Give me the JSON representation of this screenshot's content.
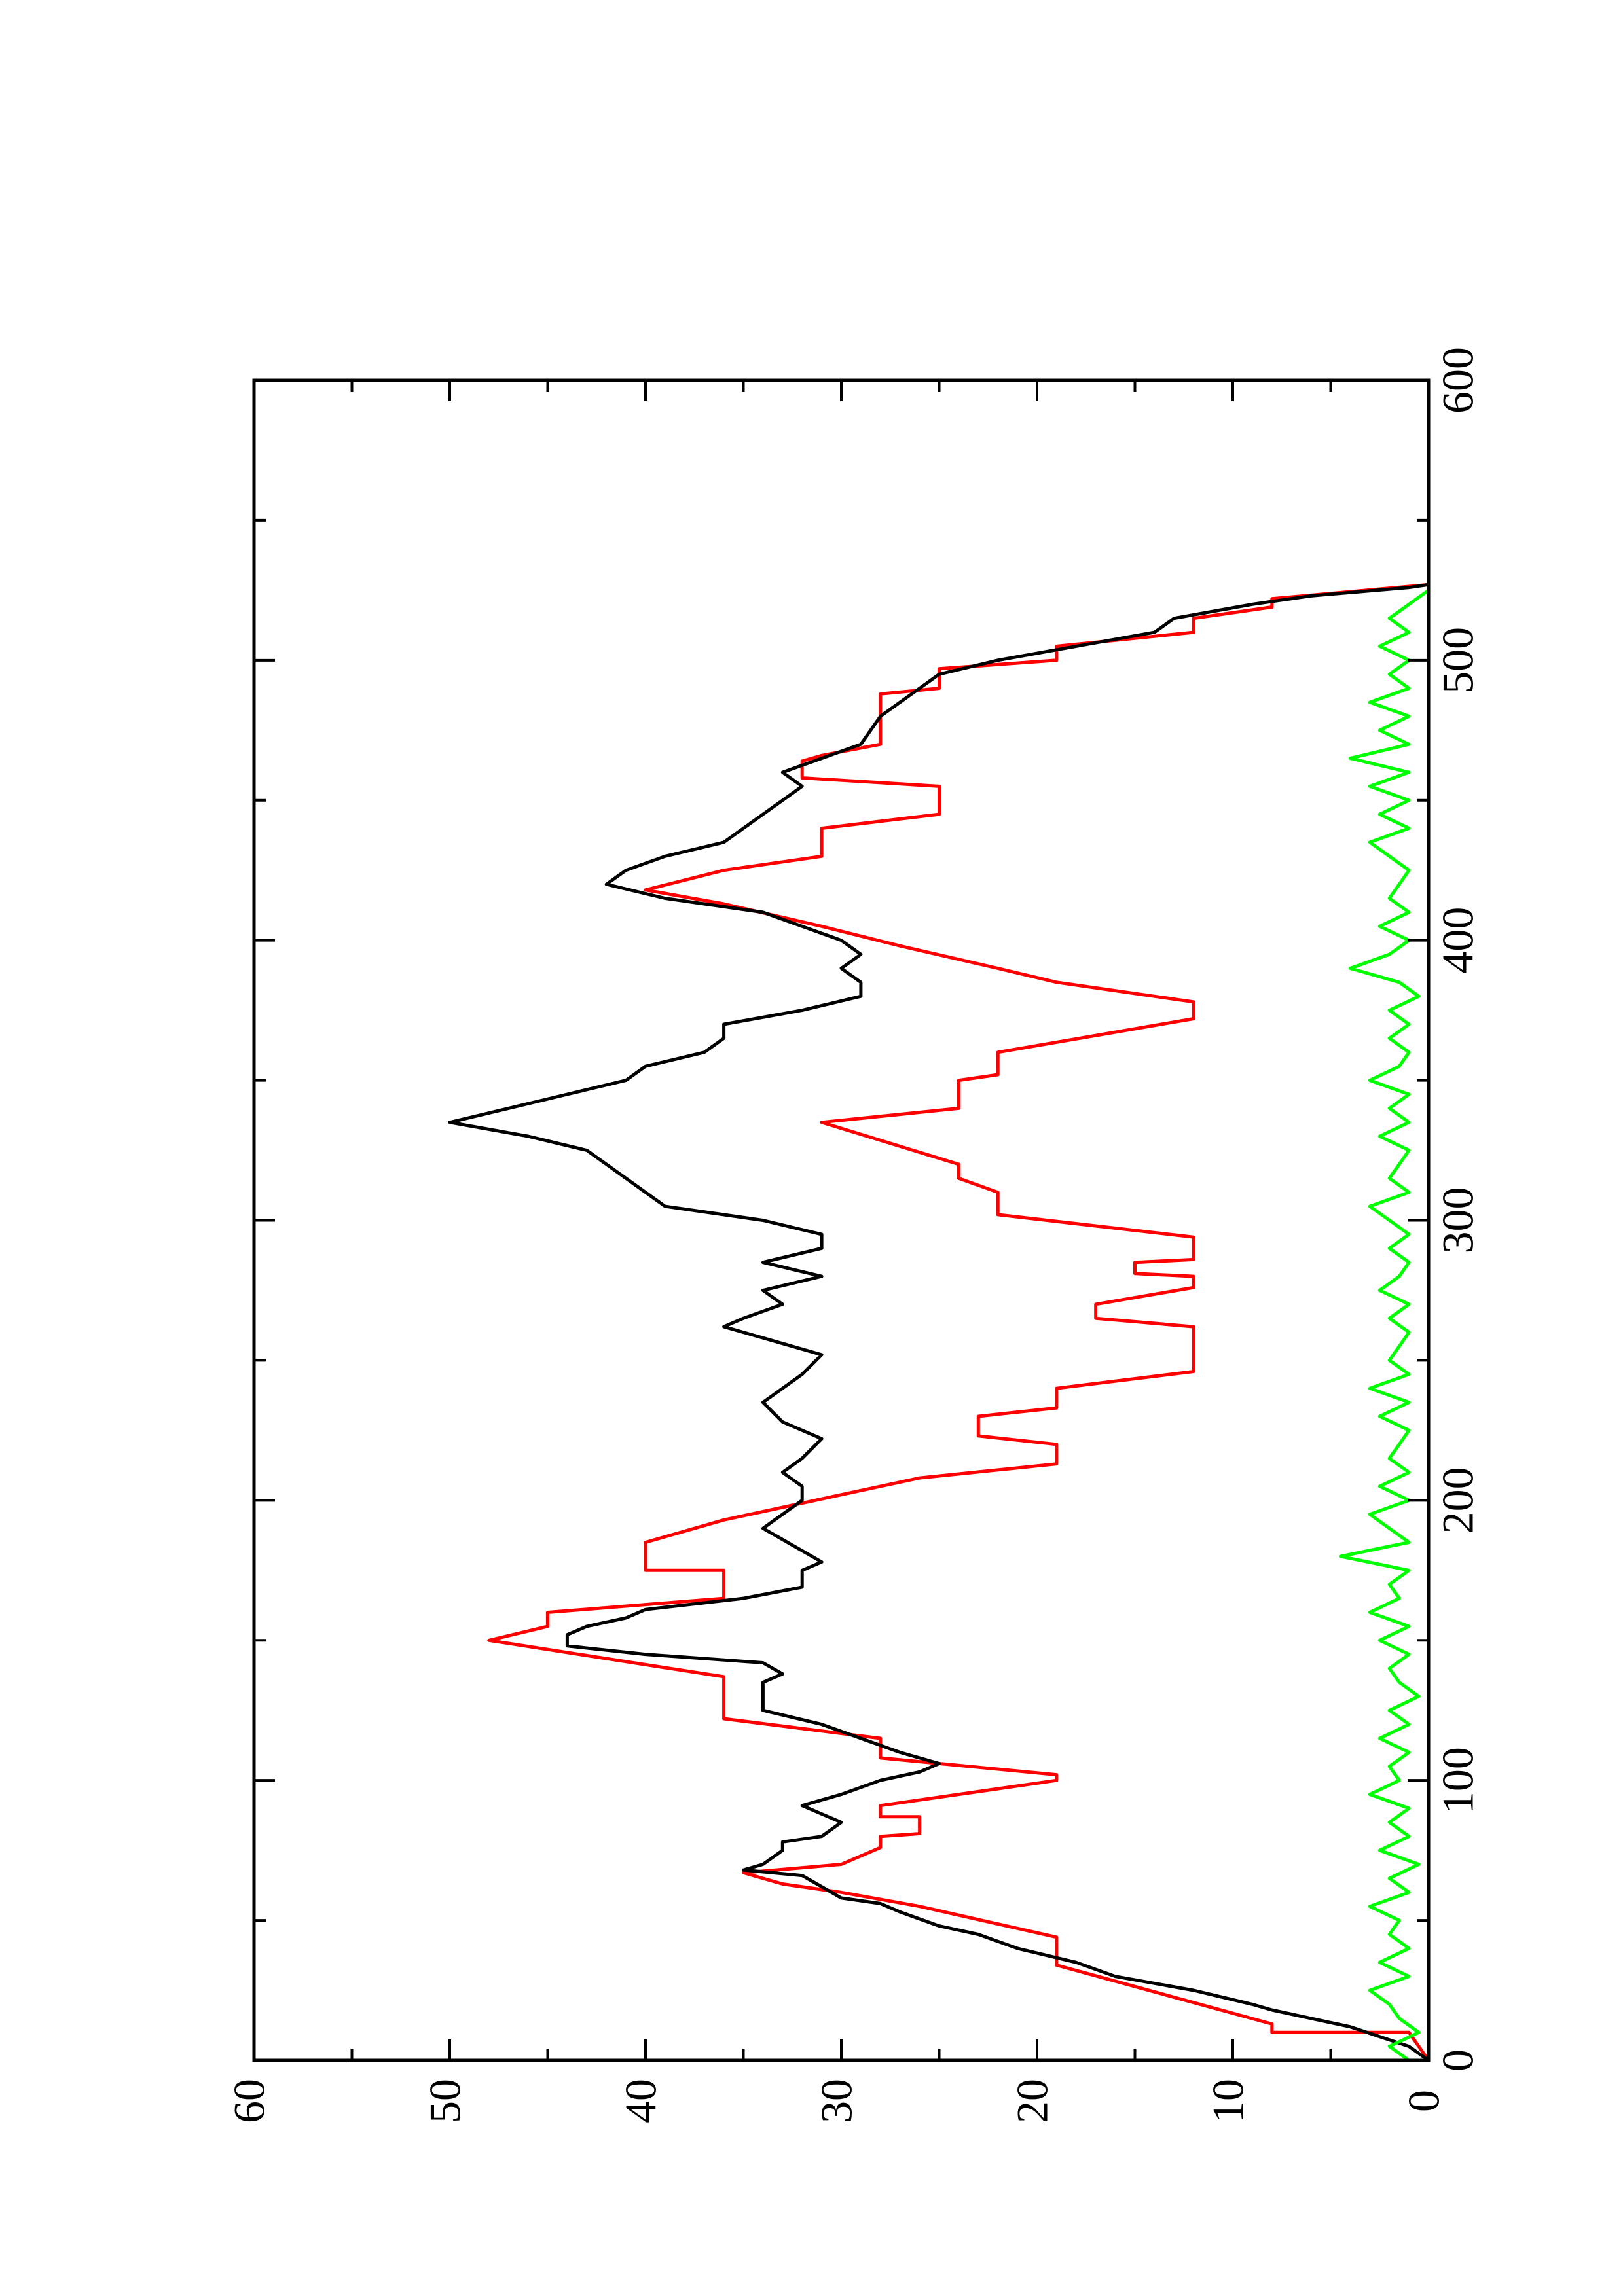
{
  "chart_data": {
    "type": "line",
    "xlim": [
      0,
      600
    ],
    "ylim": [
      0,
      60
    ],
    "xticks": [
      0,
      100,
      200,
      300,
      400,
      500,
      600
    ],
    "yticks": [
      0,
      10,
      20,
      30,
      40,
      50,
      60
    ],
    "x_minor_ticks": [
      50,
      150,
      250,
      350,
      450,
      550
    ],
    "y_minor_ticks": [
      5,
      15,
      25,
      35,
      45,
      55
    ],
    "series": [
      {
        "color": "#ff0000",
        "x": [
          0,
          10,
          10,
          13,
          34,
          44,
          55,
          60,
          63,
          67,
          70,
          76,
          80,
          81,
          87,
          87,
          91,
          100,
          102,
          108,
          115,
          122,
          137,
          150,
          155,
          160,
          165,
          175,
          175,
          185,
          193,
          205,
          208,
          213,
          220,
          223,
          230,
          233,
          240,
          246,
          262,
          265,
          270,
          276,
          280,
          281,
          285,
          286,
          294,
          302,
          310,
          315,
          320,
          335,
          340,
          350,
          352,
          360,
          372,
          378,
          385,
          390,
          398,
          405,
          413,
          418,
          425,
          430,
          440,
          445,
          455,
          458,
          464,
          466,
          470,
          488,
          490,
          497,
          500,
          505,
          510,
          515,
          519,
          522,
          527
        ],
        "values": [
          0,
          1,
          8,
          8,
          19,
          19,
          26,
          30,
          33,
          35,
          30,
          28,
          28,
          26,
          26,
          28,
          28,
          19,
          19,
          28,
          28,
          36,
          36,
          48,
          45,
          45,
          36,
          36,
          40,
          40,
          36,
          28,
          26,
          19,
          19,
          23,
          23,
          19,
          19,
          12,
          12,
          17,
          17,
          12,
          12,
          15,
          15,
          12,
          12,
          22,
          22,
          24,
          24,
          31,
          24,
          24,
          22,
          22,
          12,
          12,
          19,
          22,
          27,
          31,
          36,
          40,
          36,
          31,
          31,
          25,
          25,
          32,
          32,
          31,
          28,
          28,
          25,
          25,
          19,
          19,
          12,
          12,
          8,
          8,
          0
        ]
      },
      {
        "color": "#000000",
        "x": [
          0,
          5,
          12,
          18,
          20,
          25,
          30,
          35,
          40,
          45,
          48,
          53,
          56,
          58,
          62,
          66,
          68,
          70,
          75,
          78,
          80,
          85,
          88,
          91,
          95,
          100,
          103,
          106,
          110,
          115,
          120,
          125,
          130,
          135,
          138,
          142,
          145,
          148,
          152,
          155,
          158,
          161,
          165,
          169,
          175,
          178,
          182,
          186,
          190,
          195,
          200,
          205,
          210,
          215,
          222,
          228,
          235,
          245,
          252,
          258,
          262,
          265,
          270,
          275,
          280,
          285,
          290,
          295,
          300,
          305,
          310,
          315,
          320,
          325,
          330,
          335,
          340,
          345,
          350,
          355,
          360,
          365,
          370,
          375,
          380,
          385,
          390,
          395,
          400,
          405,
          410,
          415,
          420,
          425,
          430,
          435,
          440,
          445,
          450,
          455,
          460,
          465,
          470,
          480,
          490,
          495,
          500,
          505,
          510,
          515,
          520,
          523,
          526,
          527
        ],
        "values": [
          0,
          1,
          4,
          8,
          9,
          12,
          16,
          18,
          21,
          23,
          25,
          27,
          28,
          30,
          31,
          32,
          35,
          34,
          33,
          33,
          31,
          30,
          31,
          32,
          30,
          28,
          26,
          25,
          27,
          29,
          31,
          34,
          34,
          34,
          33,
          34,
          40,
          44,
          44,
          43,
          41,
          40,
          35,
          32,
          32,
          31,
          32,
          33,
          34,
          33,
          32,
          32,
          33,
          32,
          31,
          33,
          34,
          32,
          31,
          34,
          36,
          35,
          33,
          34,
          31,
          34,
          31,
          31,
          34,
          39,
          40,
          41,
          42,
          43,
          46,
          50,
          47,
          44,
          41,
          40,
          37,
          36,
          36,
          32,
          29,
          29,
          30,
          29,
          30,
          32,
          34,
          39,
          42,
          41,
          39,
          36,
          35,
          34,
          33,
          32,
          33,
          31,
          29,
          28,
          26,
          25,
          22,
          18,
          14,
          13,
          9,
          6,
          1,
          0
        ]
      },
      {
        "color": "#00ff00",
        "x": [
          0,
          5,
          10,
          15,
          20,
          25,
          30,
          35,
          40,
          45,
          50,
          55,
          60,
          65,
          70,
          75,
          80,
          85,
          90,
          95,
          100,
          105,
          110,
          115,
          120,
          125,
          130,
          135,
          140,
          145,
          150,
          155,
          160,
          165,
          170,
          175,
          180,
          185,
          190,
          195,
          200,
          205,
          210,
          215,
          220,
          225,
          230,
          235,
          240,
          245,
          250,
          255,
          260,
          265,
          270,
          275,
          280,
          285,
          290,
          295,
          300,
          305,
          310,
          315,
          320,
          325,
          330,
          335,
          340,
          345,
          350,
          355,
          360,
          365,
          370,
          375,
          380,
          385,
          390,
          395,
          400,
          405,
          410,
          415,
          420,
          425,
          430,
          435,
          440,
          445,
          450,
          455,
          460,
          465,
          470,
          475,
          480,
          485,
          490,
          495,
          500,
          505,
          510,
          515,
          520,
          525
        ],
        "values": [
          1,
          2,
          0.5,
          1.5,
          2,
          3,
          1,
          2.5,
          1,
          2,
          1.5,
          3,
          1,
          2,
          0.5,
          2.5,
          1,
          2,
          1,
          3,
          1.5,
          2,
          1,
          2.5,
          1,
          2,
          0.5,
          1.5,
          2,
          1,
          2.5,
          1,
          3,
          1.5,
          2,
          1,
          4.5,
          1,
          2,
          3,
          1,
          2.5,
          1,
          2,
          1.5,
          1,
          2.5,
          1,
          3,
          1,
          2,
          1.5,
          1,
          2,
          1,
          2.5,
          1.5,
          1,
          2,
          1,
          2,
          3,
          1,
          2,
          1.5,
          1,
          2.5,
          1,
          2,
          1,
          3,
          1.5,
          1,
          2,
          1,
          2,
          0.5,
          1.5,
          4,
          2,
          1,
          2.5,
          1,
          2,
          1.5,
          1,
          2,
          3,
          1,
          2.5,
          1,
          3,
          1,
          4,
          1,
          2.5,
          1,
          3,
          1,
          2,
          1,
          2.5,
          1,
          2,
          1,
          0
        ]
      }
    ]
  }
}
